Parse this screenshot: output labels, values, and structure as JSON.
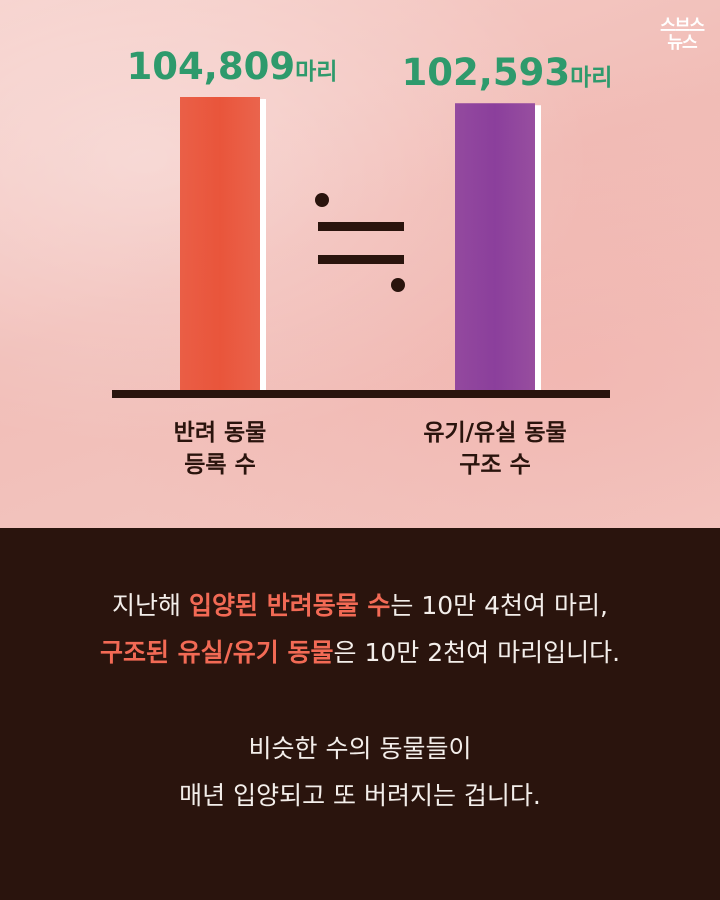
{
  "logo": {
    "line1": "스브스",
    "line2": "뉴스"
  },
  "chart_data": {
    "type": "bar",
    "categories": [
      {
        "line1": "반려 동물",
        "line2": "등록 수"
      },
      {
        "line1": "유기/유실 동물",
        "line2": "구조 수"
      }
    ],
    "values": [
      104809,
      102593
    ],
    "value_labels": [
      "104,809",
      "102,593"
    ],
    "unit": "마리",
    "comparison_symbol": "≒",
    "ylim": [
      0,
      104809
    ],
    "colors": {
      "bar1": "#e9553b",
      "bar2": "#8b3f9c",
      "label": "#2e9a6c",
      "axis": "#2a140d"
    }
  },
  "text": {
    "p1_l1_a": "지난해 ",
    "p1_l1_hl": "입양된 반려동물 수",
    "p1_l1_b": "는 10만 4천여 마리,",
    "p1_l2_hl": "구조된 유실/유기 동물",
    "p1_l2_b": "은 10만 2천여 마리입니다.",
    "p2_l1": "비슷한 수의 동물들이",
    "p2_l2": "매년 입양되고 또 버려지는 겁니다."
  }
}
